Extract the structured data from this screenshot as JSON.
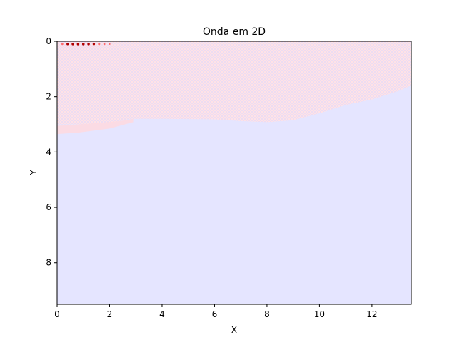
{
  "chart_data": {
    "type": "heatmap",
    "title": "Onda em 2D",
    "xlabel": "X",
    "ylabel": "Y",
    "xlim": [
      0,
      13.5
    ],
    "ylim": [
      9.5,
      0
    ],
    "y_inverted": true,
    "grid": false,
    "x_ticks": [
      "0",
      "2",
      "4",
      "6",
      "8",
      "10",
      "12"
    ],
    "y_ticks": [
      "0",
      "2",
      "4",
      "6",
      "8"
    ],
    "colors": {
      "background_field": "#e5e5ff",
      "wave_zone": "#ffe2e6",
      "wave_pattern": "#e8dcf4",
      "source_hot": "#b00000",
      "source_warm": "#ff6a6a"
    },
    "wavefront_boundary": {
      "x": [
        0,
        1.0,
        2.0,
        2.8,
        4,
        6,
        7,
        8,
        9,
        10,
        11,
        12,
        13,
        13.5
      ],
      "y": [
        3.0,
        3.0,
        2.95,
        2.8,
        2.8,
        2.82,
        2.88,
        2.92,
        2.85,
        2.6,
        2.3,
        2.1,
        1.8,
        1.6
      ]
    },
    "source_row": {
      "y": 0.1,
      "x": [
        0.2,
        0.4,
        0.6,
        0.8,
        1.0,
        1.2,
        1.4,
        1.6,
        1.8,
        2.0
      ],
      "intensity": [
        0.5,
        0.8,
        0.95,
        1.0,
        1.0,
        0.95,
        0.85,
        0.7,
        0.5,
        0.3
      ]
    }
  }
}
